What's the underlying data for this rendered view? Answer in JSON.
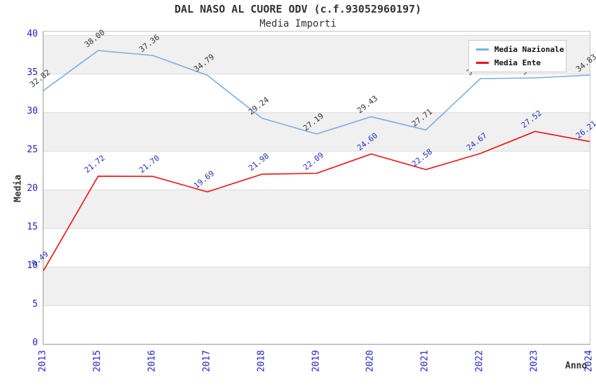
{
  "page": {
    "background": "#ffffff"
  },
  "chart_data": {
    "type": "line",
    "title": "DAL NASO AL CUORE ODV (c.f.93052960197)",
    "subtitle": "Media Importi",
    "xlabel": "Anno",
    "ylabel": "Media",
    "categories": [
      "2013",
      "2015",
      "2016",
      "2017",
      "2018",
      "2019",
      "2020",
      "2021",
      "2022",
      "2023",
      "2024"
    ],
    "ylim": [
      0,
      40
    ],
    "ytick_step": 5,
    "yticks": [
      0,
      5,
      10,
      15,
      20,
      25,
      30,
      35,
      40
    ],
    "grid": true,
    "band_fill": "#f0f0f0",
    "gridline_color": "#dddddd",
    "tick_label_color": "#2222cc",
    "legend_position": "top-right",
    "series": [
      {
        "name": "Media Nazionale",
        "color": "#7aafe0",
        "label_color": "#333333",
        "values": [
          32.82,
          38.0,
          37.36,
          34.79,
          29.24,
          27.19,
          29.43,
          27.71,
          34.36,
          34.45,
          34.83
        ],
        "point_labels": [
          "32.82",
          "38.00",
          "37.36",
          "34.79",
          "29.24",
          "27.19",
          "29.43",
          "27.71",
          "34.36",
          "34.45",
          "34.83"
        ]
      },
      {
        "name": "Media Ente",
        "color": "#ee1111",
        "label_color": "#2233bb",
        "values": [
          9.49,
          21.72,
          21.7,
          19.69,
          21.98,
          22.09,
          24.6,
          22.58,
          24.67,
          27.52,
          26.21
        ],
        "point_labels": [
          "9.49",
          "21.72",
          "21.70",
          "19.69",
          "21.98",
          "22.09",
          "24.60",
          "22.58",
          "24.67",
          "27.52",
          "26.21"
        ]
      }
    ]
  }
}
